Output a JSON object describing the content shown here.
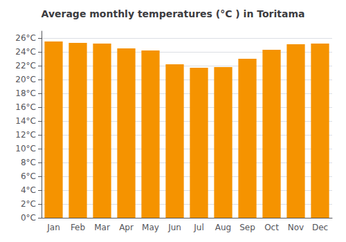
{
  "chart_data": {
    "type": "bar",
    "title": "Average monthly temperatures (°C ) in Toritama",
    "categories": [
      "Jan",
      "Feb",
      "Mar",
      "Apr",
      "May",
      "Jun",
      "Jul",
      "Aug",
      "Sep",
      "Oct",
      "Nov",
      "Dec"
    ],
    "values": [
      25.5,
      25.3,
      25.2,
      24.5,
      24.2,
      22.2,
      21.7,
      21.8,
      23.0,
      24.3,
      25.1,
      25.2
    ],
    "color": "#F59300",
    "ylim": [
      0,
      27
    ],
    "yticks": [
      {
        "value": 0,
        "label": "0°C"
      },
      {
        "value": 2,
        "label": "2°C"
      },
      {
        "value": 4,
        "label": "4°C"
      },
      {
        "value": 6,
        "label": "6°C"
      },
      {
        "value": 8,
        "label": "8°C"
      },
      {
        "value": 10,
        "label": "10°C"
      },
      {
        "value": 12,
        "label": "12°C"
      },
      {
        "value": 14,
        "label": "14°C"
      },
      {
        "value": 16,
        "label": "16°C"
      },
      {
        "value": 18,
        "label": "18°C"
      },
      {
        "value": 20,
        "label": "20°C"
      },
      {
        "value": 22,
        "label": "22°C"
      },
      {
        "value": 24,
        "label": "24°C"
      },
      {
        "value": 26,
        "label": "26°C"
      }
    ],
    "grid": true
  }
}
